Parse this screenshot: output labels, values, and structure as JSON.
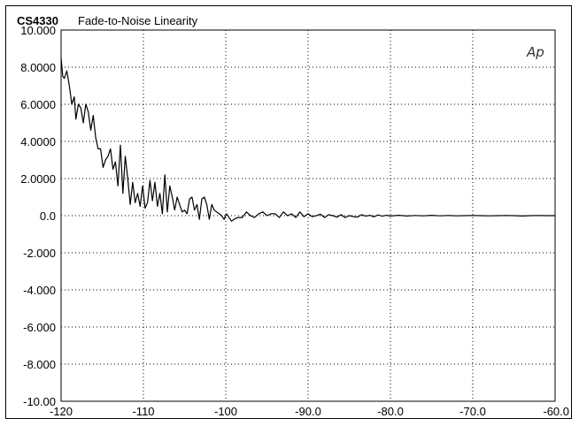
{
  "chart_data": {
    "type": "line",
    "title": "CS4330",
    "subtitle": "Fade-to-Noise  Linearity",
    "logo": "Ap",
    "xlabel": "",
    "ylabel": "",
    "xlim": [
      -120,
      -60
    ],
    "ylim": [
      -10,
      10
    ],
    "grid": true,
    "x_ticks": [
      "-120",
      "-110",
      "-100",
      "-90.0",
      "-80.0",
      "-70.0",
      "-60.0"
    ],
    "y_ticks": [
      "10.000",
      "8.0000",
      "6.0000",
      "4.0000",
      "2.0000",
      "0.0",
      "-2.000",
      "-4.000",
      "-6.000",
      "-8.000",
      "-10.00"
    ],
    "series": [
      {
        "x": [
          -120,
          -119.8,
          -119.6,
          -119.3,
          -119.0,
          -118.7,
          -118.4,
          -118.2,
          -117.9,
          -117.6,
          -117.3,
          -117.0,
          -116.7,
          -116.4,
          -116.1,
          -115.8,
          -115.5,
          -115.2,
          -114.9,
          -114.6,
          -114.3,
          -114.0,
          -113.7,
          -113.4,
          -113.1,
          -112.8,
          -112.5,
          -112.2,
          -111.9,
          -111.6,
          -111.3,
          -111.0,
          -110.7,
          -110.4,
          -110.1,
          -109.8,
          -109.5,
          -109.2,
          -108.9,
          -108.6,
          -108.3,
          -108.0,
          -107.7,
          -107.4,
          -107.1,
          -106.8,
          -106.5,
          -106.2,
          -105.9,
          -105.6,
          -105.3,
          -105.0,
          -104.7,
          -104.4,
          -104.1,
          -103.8,
          -103.5,
          -103.2,
          -102.9,
          -102.6,
          -102.3,
          -102.0,
          -101.7,
          -101.4,
          -101.1,
          -100.8,
          -100.5,
          -100.2,
          -99.9,
          -99.6,
          -99.3,
          -99.0,
          -98.5,
          -98.0,
          -97.5,
          -97.0,
          -96.5,
          -96.0,
          -95.5,
          -95.0,
          -94.5,
          -94.0,
          -93.5,
          -93.0,
          -92.5,
          -92.0,
          -91.5,
          -91.0,
          -90.5,
          -90.0,
          -89.5,
          -89.0,
          -88.5,
          -88.0,
          -87.5,
          -87.0,
          -86.5,
          -86.0,
          -85.5,
          -85.0,
          -84.5,
          -84.0,
          -83.5,
          -83.0,
          -82.5,
          -82.0,
          -81.5,
          -81.0,
          -80.5,
          -80.0,
          -79.0,
          -78.0,
          -77.0,
          -76.0,
          -75.0,
          -74.0,
          -73.0,
          -72.0,
          -71.0,
          -70.0,
          -69.0,
          -68.0,
          -67.0,
          -66.0,
          -65.0,
          -64.0,
          -63.0,
          -62.0,
          -61.0,
          -60.0
        ],
        "y": [
          8.5,
          7.5,
          7.4,
          7.8,
          7.0,
          6.0,
          6.4,
          5.2,
          6.0,
          5.8,
          5.0,
          6.0,
          5.6,
          4.6,
          5.4,
          4.2,
          3.6,
          3.6,
          2.6,
          3.0,
          3.2,
          3.6,
          2.5,
          2.9,
          1.6,
          3.8,
          1.2,
          3.2,
          2.0,
          0.6,
          1.8,
          0.7,
          1.2,
          0.5,
          1.6,
          0.4,
          0.7,
          1.9,
          0.8,
          1.8,
          0.5,
          1.2,
          0.1,
          2.2,
          0.2,
          1.6,
          1.0,
          0.3,
          1.0,
          0.6,
          0.2,
          0.3,
          0.1,
          0.9,
          1.0,
          0.3,
          0.6,
          -0.2,
          0.9,
          1.0,
          0.6,
          -0.2,
          0.6,
          0.3,
          0.2,
          0.1,
          0.0,
          -0.2,
          0.1,
          -0.1,
          -0.3,
          -0.2,
          -0.1,
          -0.1,
          0.2,
          0.0,
          -0.1,
          0.1,
          0.2,
          0.0,
          0.1,
          0.1,
          -0.1,
          0.2,
          0.0,
          0.1,
          -0.1,
          0.2,
          -0.05,
          0.1,
          -0.05,
          0.0,
          0.08,
          -0.1,
          0.05,
          0.0,
          -0.08,
          0.05,
          -0.1,
          0.0,
          -0.05,
          -0.08,
          0.05,
          -0.03,
          0.02,
          -0.06,
          0.04,
          -0.03,
          0.02,
          -0.02,
          0.02,
          -0.02,
          0.01,
          -0.01,
          0.02,
          -0.01,
          0.01,
          -0.01,
          0.0,
          0.01,
          0.0,
          -0.01,
          0.0,
          0.01,
          0.0,
          -0.02,
          0.0,
          0.01,
          0.0,
          0.0
        ]
      }
    ]
  }
}
